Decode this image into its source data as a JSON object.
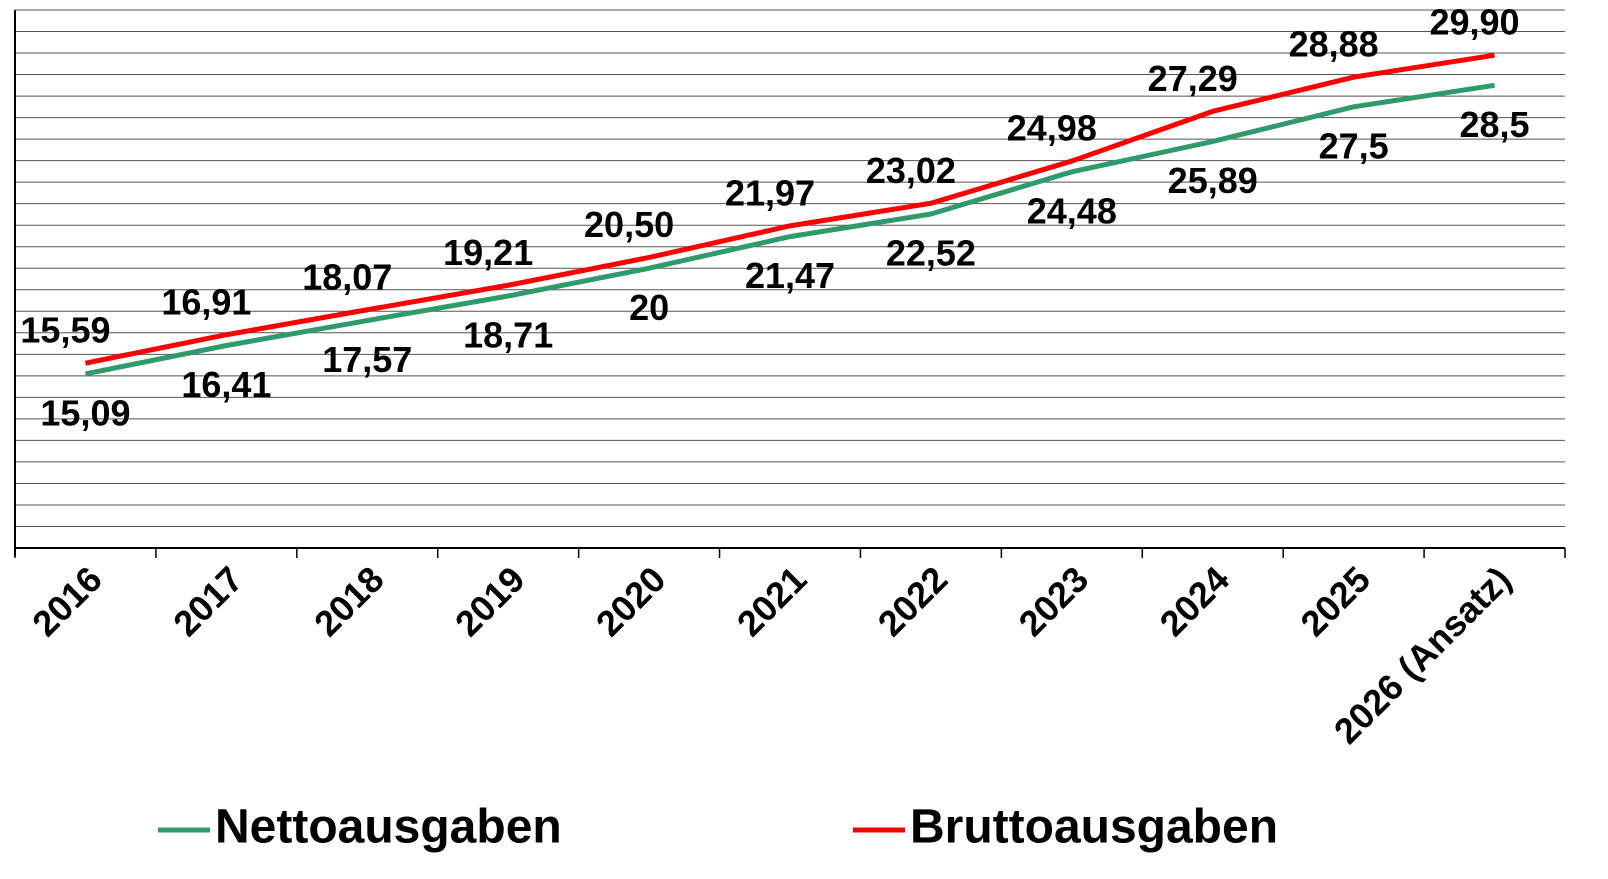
{
  "chart_data": {
    "type": "line",
    "categories": [
      "2016",
      "2017",
      "2018",
      "2019",
      "2020",
      "2021",
      "2022",
      "2023",
      "2024",
      "2025",
      "2026 (Ansatz)"
    ],
    "series": [
      {
        "name": "Nettoausgaben",
        "color": "#2e9b6a",
        "values": [
          15.09,
          16.41,
          17.57,
          18.71,
          20,
          21.47,
          22.52,
          24.48,
          25.89,
          27.5,
          28.5
        ],
        "value_labels": [
          "15,09",
          "16,41",
          "17,57",
          "18,71",
          "20",
          "21,47",
          "22,52",
          "24,48",
          "25,89",
          "27,5",
          "28,5"
        ]
      },
      {
        "name": "Bruttoausgaben",
        "color": "#ff0000",
        "values": [
          15.59,
          16.91,
          18.07,
          19.21,
          20.5,
          21.97,
          23.02,
          24.98,
          27.29,
          28.88,
          29.9
        ],
        "value_labels": [
          "15,59",
          "16,91",
          "18,07",
          "19,21",
          "20,50",
          "21,97",
          "23,02",
          "24,98",
          "27,29",
          "28,88",
          "29,90"
        ]
      }
    ],
    "ylim": [
      7,
      32
    ],
    "yticks": [
      7,
      8,
      9,
      10,
      11,
      12,
      13,
      14,
      15,
      16,
      17,
      18,
      19,
      20,
      21,
      22,
      23,
      24,
      25,
      26,
      27,
      28,
      29,
      30,
      31,
      32
    ],
    "grid": true,
    "legend": "bottom"
  }
}
